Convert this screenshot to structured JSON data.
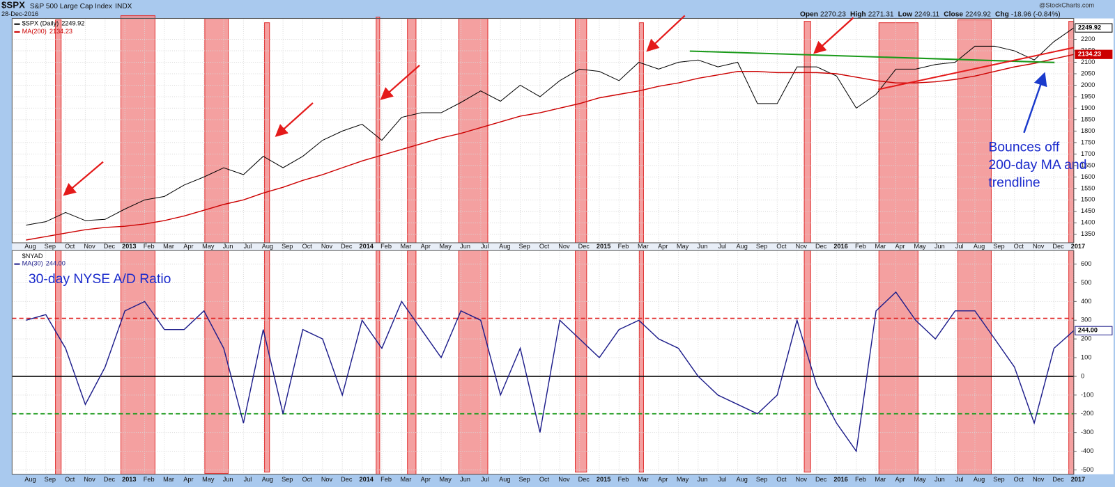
{
  "header": {
    "symbol": "$SPX",
    "name": "S&P 500 Large Cap Index",
    "exchange": "INDX",
    "date": "28-Dec-2016",
    "quote": [
      {
        "label": "Open",
        "value": "2270.23"
      },
      {
        "label": "High",
        "value": "2271.31"
      },
      {
        "label": "Low",
        "value": "2249.11"
      },
      {
        "label": "Close",
        "value": "2249.92"
      },
      {
        "label": "Chg",
        "value": "-18.96 (-0.84%)"
      }
    ],
    "source": "@StockCharts.com"
  },
  "chart_data": [
    {
      "type": "line",
      "categories": [
        "Aug",
        "Sep",
        "Oct",
        "Nov",
        "Dec",
        "2013",
        "Feb",
        "Mar",
        "Apr",
        "May",
        "Jun",
        "Jul",
        "Aug",
        "Sep",
        "Oct",
        "Nov",
        "Dec",
        "2014",
        "Feb",
        "Mar",
        "Apr",
        "May",
        "Jun",
        "Jul",
        "Aug",
        "Sep",
        "Oct",
        "Nov",
        "Dec",
        "2015",
        "Feb",
        "Mar",
        "Apr",
        "May",
        "Jun",
        "Jul",
        "Aug",
        "Sep",
        "Oct",
        "Nov",
        "Dec",
        "2016",
        "Feb",
        "Mar",
        "Apr",
        "May",
        "Jun",
        "Jul",
        "Aug",
        "Sep",
        "Oct",
        "Nov",
        "Dec",
        "2017"
      ],
      "ylim": [
        1313,
        2291
      ],
      "yticks": [
        1350,
        1400,
        1450,
        1500,
        1550,
        1600,
        1650,
        1700,
        1750,
        1800,
        1850,
        1900,
        1950,
        2000,
        2050,
        2100,
        2150,
        2200
      ],
      "grid": true,
      "series": [
        {
          "name": "$SPX (Daily)",
          "color": "#000000",
          "last_label": "2249.92",
          "values": [
            1390,
            1405,
            1445,
            1410,
            1415,
            1460,
            1500,
            1515,
            1565,
            1600,
            1640,
            1610,
            1690,
            1640,
            1690,
            1760,
            1800,
            1830,
            1760,
            1860,
            1880,
            1880,
            1925,
            1975,
            1930,
            2000,
            1950,
            2020,
            2070,
            2060,
            2020,
            2100,
            2070,
            2100,
            2110,
            2080,
            2100,
            1920,
            1920,
            2080,
            2080,
            2040,
            1900,
            1960,
            2070,
            2070,
            2090,
            2100,
            2170,
            2170,
            2150,
            2110,
            2190,
            2249.92
          ]
        },
        {
          "name": "MA(200)",
          "color": "#cc0000",
          "last_label": "2134.23",
          "values": [
            1325,
            1340,
            1355,
            1370,
            1380,
            1385,
            1395,
            1410,
            1430,
            1455,
            1480,
            1500,
            1530,
            1555,
            1585,
            1610,
            1640,
            1670,
            1695,
            1720,
            1745,
            1770,
            1790,
            1815,
            1840,
            1865,
            1880,
            1900,
            1920,
            1945,
            1960,
            1975,
            1995,
            2010,
            2030,
            2045,
            2060,
            2060,
            2055,
            2055,
            2055,
            2050,
            2035,
            2020,
            2010,
            2010,
            2015,
            2025,
            2040,
            2060,
            2080,
            2095,
            2115,
            2134.23
          ]
        }
      ],
      "annotation_lines": [
        "Bounces off",
        "200-day MA and",
        "trendline"
      ]
    },
    {
      "type": "line",
      "title": "$NYAD",
      "categories": [
        "Aug",
        "Sep",
        "Oct",
        "Nov",
        "Dec",
        "2013",
        "Feb",
        "Mar",
        "Apr",
        "May",
        "Jun",
        "Jul",
        "Aug",
        "Sep",
        "Oct",
        "Nov",
        "Dec",
        "2014",
        "Feb",
        "Mar",
        "Apr",
        "May",
        "Jun",
        "Jul",
        "Aug",
        "Sep",
        "Oct",
        "Nov",
        "Dec",
        "2015",
        "Feb",
        "Mar",
        "Apr",
        "May",
        "Jun",
        "Jul",
        "Aug",
        "Sep",
        "Oct",
        "Nov",
        "Dec",
        "2016",
        "Feb",
        "Mar",
        "Apr",
        "May",
        "Jun",
        "Jul",
        "Aug",
        "Sep",
        "Oct",
        "Nov",
        "Dec",
        "2017"
      ],
      "ylim": [
        -523,
        672
      ],
      "yticks": [
        -500,
        -400,
        -300,
        -200,
        -100,
        0,
        100,
        200,
        300,
        400,
        500,
        600
      ],
      "grid": true,
      "series": [
        {
          "name": "MA(30)",
          "color": "#1c1c8a",
          "last_label": "244.00",
          "values": [
            300,
            330,
            150,
            -150,
            50,
            350,
            400,
            250,
            250,
            350,
            150,
            -250,
            250,
            -200,
            250,
            200,
            -100,
            300,
            150,
            400,
            250,
            100,
            350,
            300,
            -100,
            150,
            -300,
            300,
            200,
            100,
            250,
            300,
            200,
            150,
            0,
            -100,
            -150,
            -200,
            -100,
            300,
            -50,
            -250,
            -400,
            350,
            450,
            300,
            200,
            350,
            350,
            200,
            50,
            -250,
            150,
            244
          ]
        }
      ],
      "ref_lines": [
        {
          "value": 310,
          "color": "#e02020",
          "dash": true
        },
        {
          "value": 0,
          "color": "#000000",
          "dash": false
        },
        {
          "value": -200,
          "color": "#1a9a1a",
          "dash": true
        }
      ],
      "annotation": "30-day NYSE A/D Ratio"
    }
  ]
}
